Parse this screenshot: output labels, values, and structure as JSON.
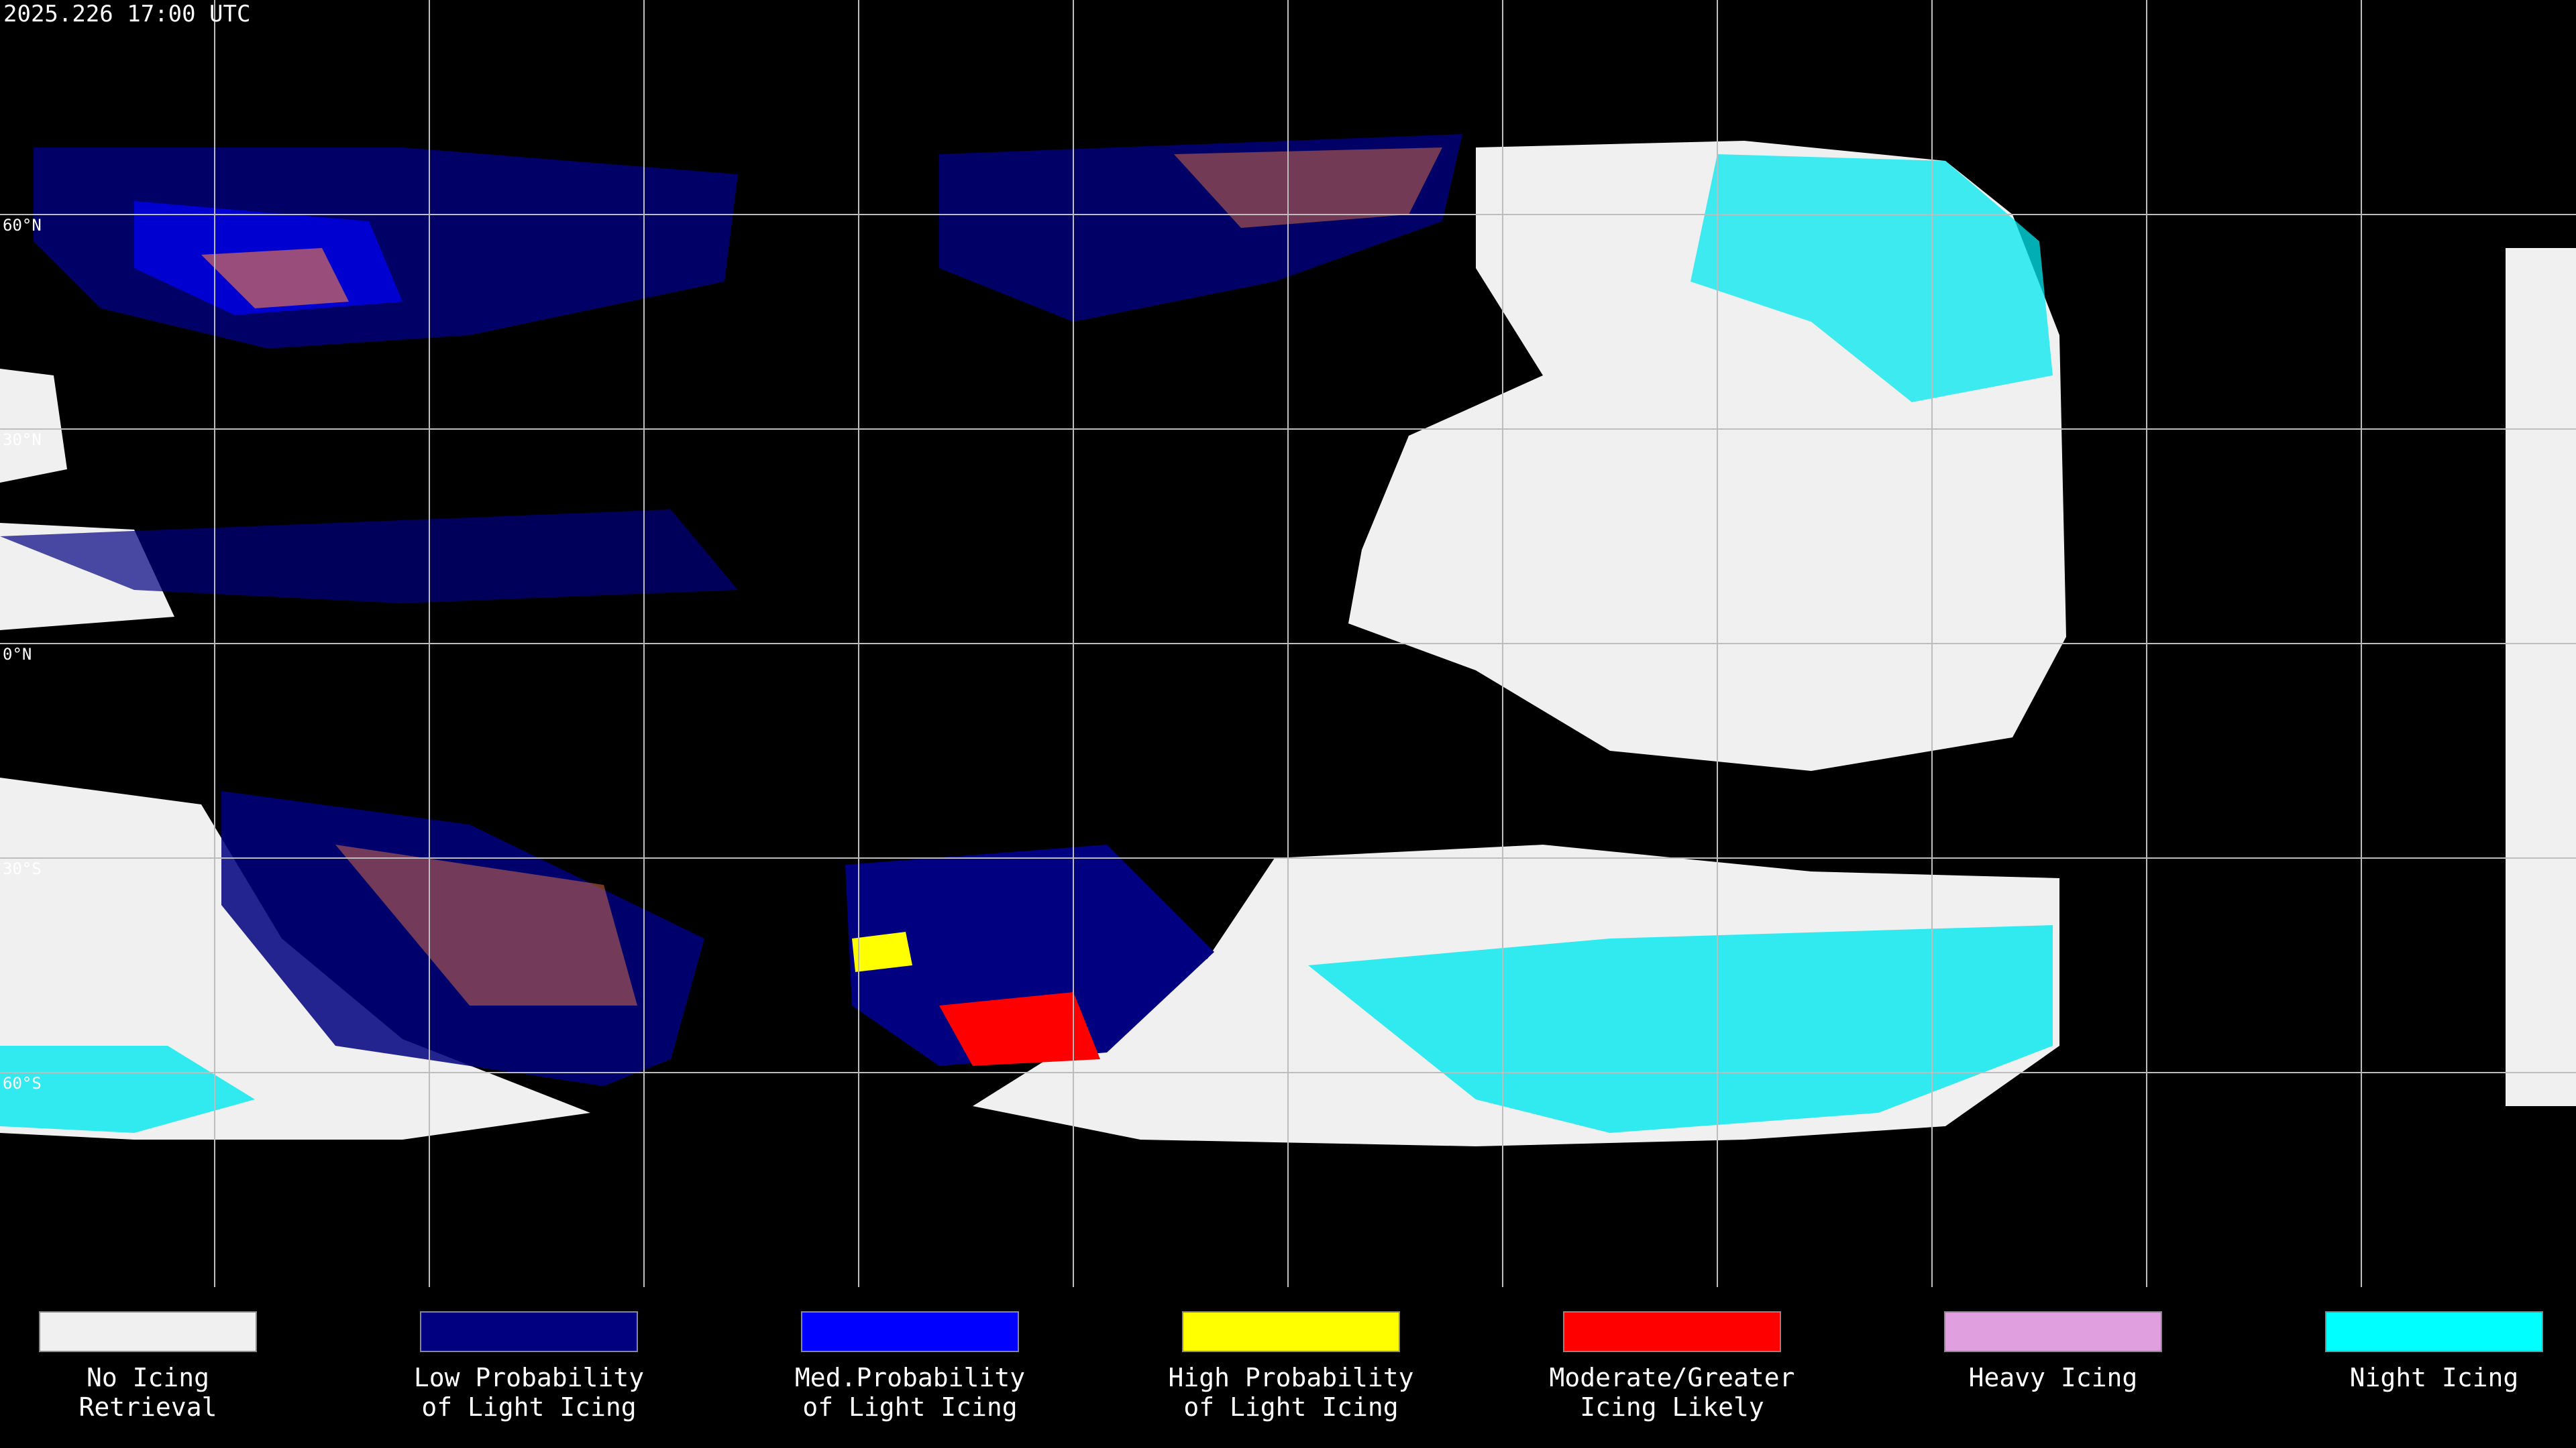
{
  "timestamp": "2025.226 17:00 UTC",
  "latitude_labels": [
    "60°N",
    "30°N",
    "0°N",
    "30°S",
    "60°S"
  ],
  "legend": [
    {
      "lines": [
        "No Icing",
        "Retrieval"
      ],
      "color": "#f0f0f0"
    },
    {
      "lines": [
        "Low Probability",
        "of Light Icing"
      ],
      "color": "#000080"
    },
    {
      "lines": [
        "Med.Probability",
        "of Light Icing"
      ],
      "color": "#0000ff"
    },
    {
      "lines": [
        "High Probability",
        "of Light Icing"
      ],
      "color": "#ffff00"
    },
    {
      "lines": [
        "Moderate/Greater",
        "Icing Likely"
      ],
      "color": "#ff0000"
    },
    {
      "lines": [
        "Heavy Icing"
      ],
      "color": "#e0a0e0"
    },
    {
      "lines": [
        "Night Icing"
      ],
      "color": "#00ffff"
    }
  ]
}
